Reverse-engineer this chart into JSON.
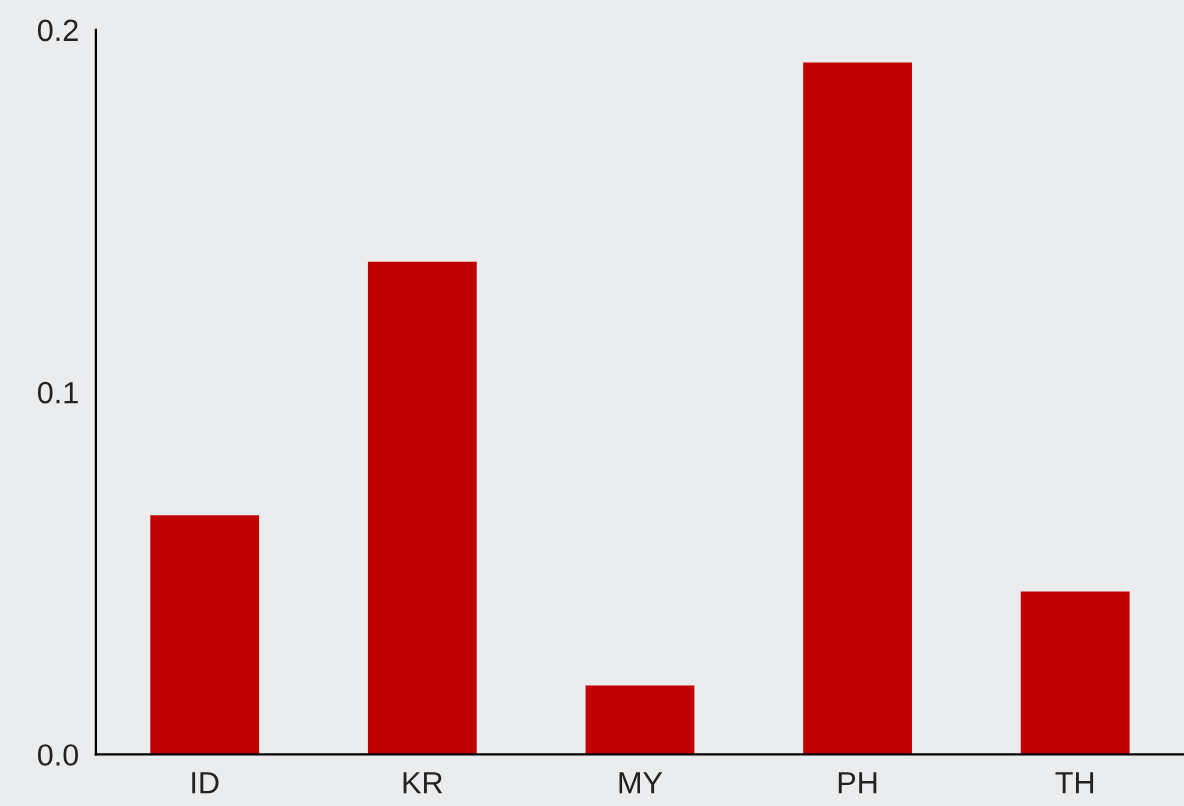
{
  "chart_data": {
    "type": "bar",
    "categories": [
      "ID",
      "KR",
      "MY",
      "PH",
      "TH"
    ],
    "values": [
      0.066,
      0.136,
      0.019,
      0.191,
      0.045
    ],
    "color": "#c00000",
    "ylim": [
      0,
      0.2
    ],
    "yticks": [
      {
        "value": 0,
        "label": "0.0"
      },
      {
        "value": 0.1,
        "label": "0.1"
      },
      {
        "value": 0.2,
        "label": "0.2"
      }
    ],
    "grid": false
  }
}
